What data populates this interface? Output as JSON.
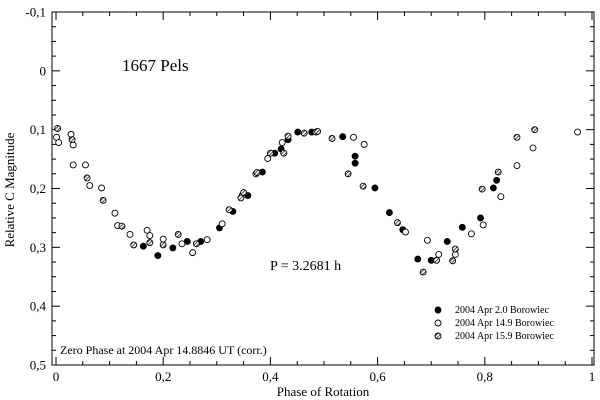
{
  "chart_data": {
    "type": "scatter",
    "title": "1667 Pels",
    "xlabel": "Phase of Rotation",
    "ylabel": "Relative C Magnitude",
    "xlim": [
      0,
      1
    ],
    "ylim": [
      -0.1,
      0.5
    ],
    "y_inverted": true,
    "x_ticks": [
      "0",
      "0,2",
      "0,4",
      "0,6",
      "0,8",
      "1"
    ],
    "y_ticks": [
      "-0,1",
      "0",
      "0,1",
      "0,2",
      "0,3",
      "0,4",
      "0,5"
    ],
    "period_annotation": "P = 3.2681 h",
    "zero_phase_note": "Zero Phase at 2004 Apr 14.8846 UT (corr.)",
    "legend_position": "bottom-right",
    "series": [
      {
        "name": "2004 Apr 2.0 Borowiec",
        "marker": "filled-circle",
        "points": [
          [
            0.163,
            0.298
          ],
          [
            0.19,
            0.314
          ],
          [
            0.218,
            0.301
          ],
          [
            0.245,
            0.29
          ],
          [
            0.27,
            0.29
          ],
          [
            0.305,
            0.267
          ],
          [
            0.33,
            0.239
          ],
          [
            0.358,
            0.212
          ],
          [
            0.385,
            0.172
          ],
          [
            0.408,
            0.14
          ],
          [
            0.42,
            0.133
          ],
          [
            0.433,
            0.117
          ],
          [
            0.451,
            0.104
          ],
          [
            0.477,
            0.104
          ],
          [
            0.535,
            0.112
          ],
          [
            0.558,
            0.145
          ],
          [
            0.558,
            0.157
          ],
          [
            0.595,
            0.199
          ],
          [
            0.622,
            0.241
          ],
          [
            0.647,
            0.27
          ],
          [
            0.675,
            0.32
          ],
          [
            0.7,
            0.322
          ],
          [
            0.73,
            0.29
          ],
          [
            0.758,
            0.266
          ],
          [
            0.792,
            0.25
          ],
          [
            0.816,
            0.199
          ],
          [
            0.822,
            0.186
          ]
        ]
      },
      {
        "name": "2004 Apr 14.9 Borowiec",
        "marker": "open-circle",
        "points": [
          [
            0.001,
            0.113
          ],
          [
            0.005,
            0.122
          ],
          [
            0.028,
            0.108
          ],
          [
            0.032,
            0.126
          ],
          [
            0.032,
            0.16
          ],
          [
            0.055,
            0.16
          ],
          [
            0.063,
            0.195
          ],
          [
            0.085,
            0.199
          ],
          [
            0.11,
            0.242
          ],
          [
            0.115,
            0.263
          ],
          [
            0.138,
            0.278
          ],
          [
            0.17,
            0.271
          ],
          [
            0.175,
            0.28
          ],
          [
            0.2,
            0.286
          ],
          [
            0.235,
            0.294
          ],
          [
            0.255,
            0.309
          ],
          [
            0.282,
            0.287
          ],
          [
            0.31,
            0.26
          ],
          [
            0.348,
            0.211
          ],
          [
            0.373,
            0.175
          ],
          [
            0.395,
            0.149
          ],
          [
            0.422,
            0.122
          ],
          [
            0.485,
            0.104
          ],
          [
            0.555,
            0.113
          ],
          [
            0.575,
            0.125
          ],
          [
            0.652,
            0.274
          ],
          [
            0.693,
            0.288
          ],
          [
            0.714,
            0.312
          ],
          [
            0.745,
            0.312
          ],
          [
            0.775,
            0.277
          ],
          [
            0.797,
            0.262
          ],
          [
            0.83,
            0.214
          ],
          [
            0.86,
            0.161
          ],
          [
            0.89,
            0.131
          ],
          [
            0.973,
            0.104
          ]
        ]
      },
      {
        "name": "2004 Apr 15.9 Borowiec",
        "marker": "hatched-circle",
        "points": [
          [
            0.003,
            0.098
          ],
          [
            0.03,
            0.117
          ],
          [
            0.058,
            0.182
          ],
          [
            0.088,
            0.22
          ],
          [
            0.123,
            0.264
          ],
          [
            0.145,
            0.296
          ],
          [
            0.175,
            0.292
          ],
          [
            0.2,
            0.296
          ],
          [
            0.228,
            0.278
          ],
          [
            0.262,
            0.294
          ],
          [
            0.323,
            0.236
          ],
          [
            0.345,
            0.216
          ],
          [
            0.35,
            0.207
          ],
          [
            0.375,
            0.173
          ],
          [
            0.4,
            0.14
          ],
          [
            0.425,
            0.14
          ],
          [
            0.433,
            0.111
          ],
          [
            0.463,
            0.106
          ],
          [
            0.488,
            0.103
          ],
          [
            0.515,
            0.115
          ],
          [
            0.545,
            0.175
          ],
          [
            0.573,
            0.196
          ],
          [
            0.637,
            0.258
          ],
          [
            0.685,
            0.342
          ],
          [
            0.71,
            0.322
          ],
          [
            0.74,
            0.323
          ],
          [
            0.745,
            0.303
          ],
          [
            0.795,
            0.201
          ],
          [
            0.825,
            0.172
          ],
          [
            0.86,
            0.113
          ],
          [
            0.893,
            0.1
          ]
        ]
      }
    ]
  }
}
